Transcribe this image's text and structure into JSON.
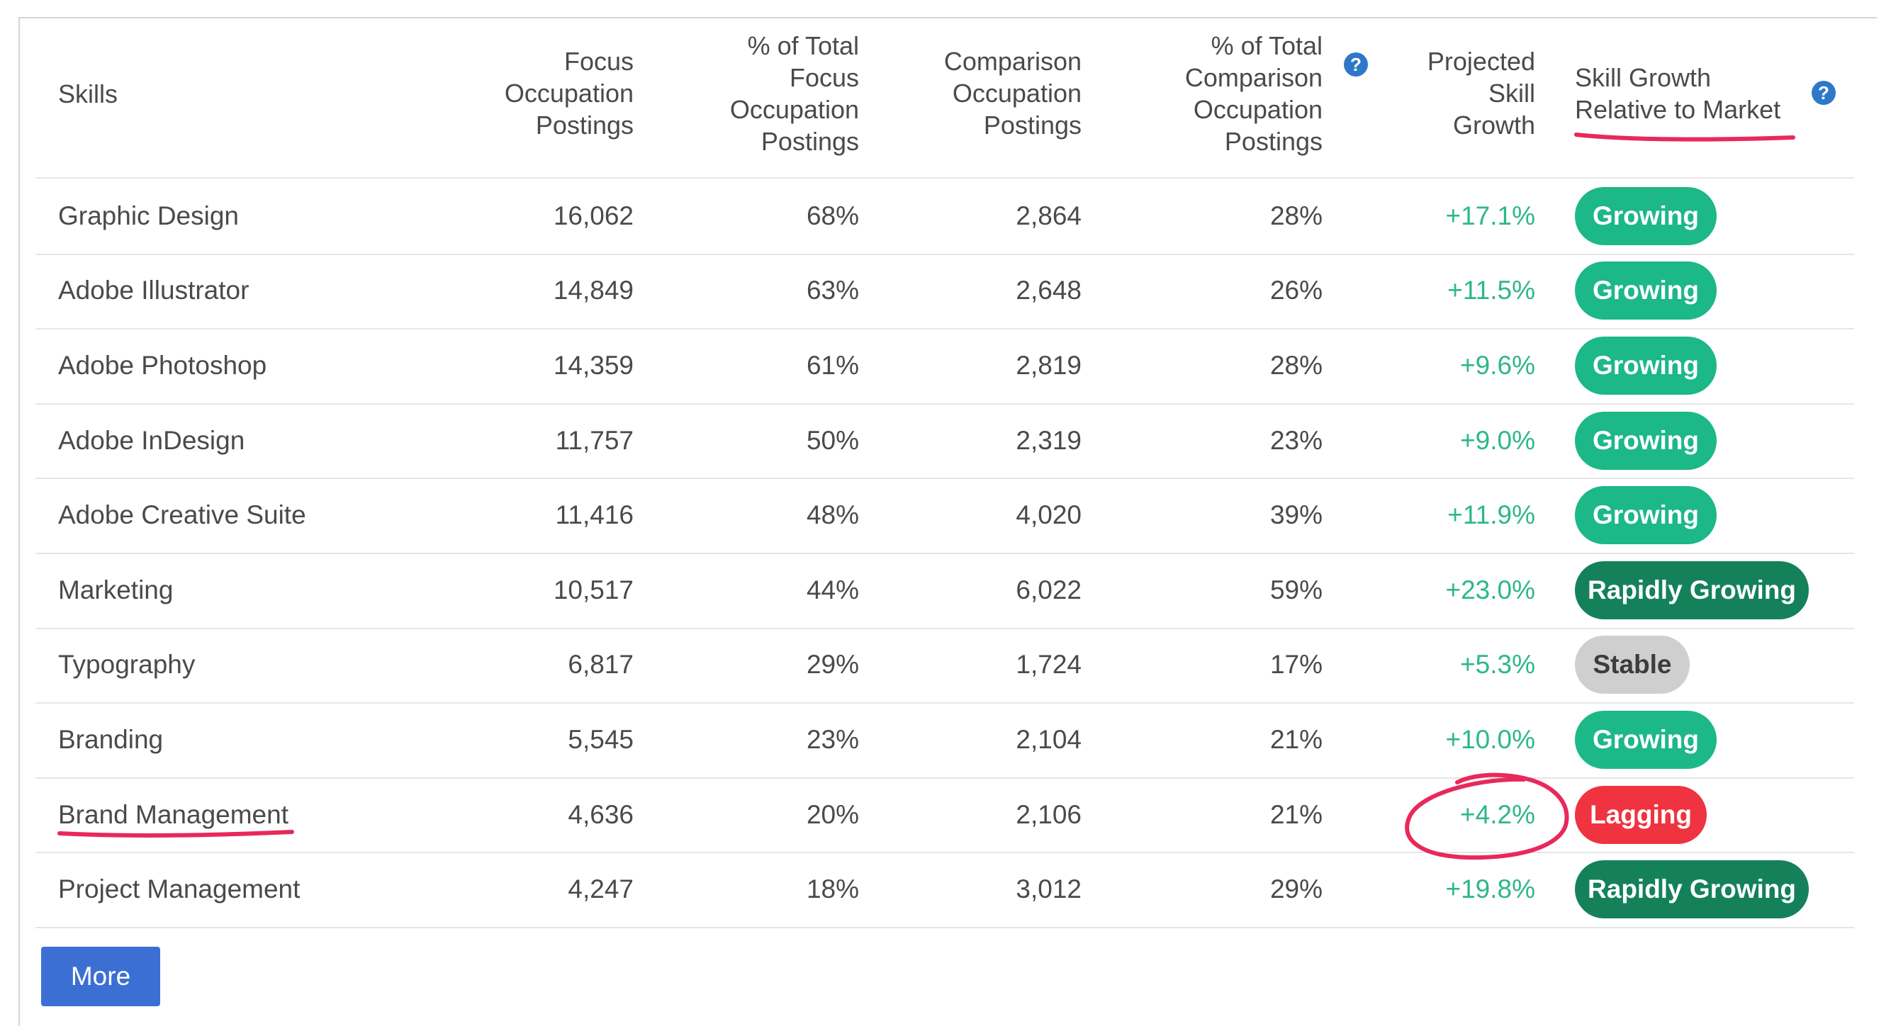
{
  "table": {
    "headers": {
      "skills": "Skills",
      "focus_postings": [
        "Focus",
        "Occupation",
        "Postings"
      ],
      "pct_focus": [
        "% of Total",
        "Focus",
        "Occupation",
        "Postings"
      ],
      "comparison_postings": [
        "Comparison",
        "Occupation",
        "Postings"
      ],
      "pct_comparison": [
        "% of Total",
        "Comparison",
        "Occupation",
        "Postings"
      ],
      "projected_growth": [
        "Projected",
        "Skill",
        "Growth"
      ],
      "relative_growth": [
        "Skill Growth",
        "Relative to Market"
      ]
    },
    "help_icon_glyph": "?",
    "rows": [
      {
        "skill": "Graphic Design",
        "focus": "16,062",
        "pct_focus": "68%",
        "comparison": "2,864",
        "pct_comparison": "28%",
        "growth": "+17.1%",
        "status": "Growing",
        "status_kind": "growing"
      },
      {
        "skill": "Adobe Illustrator",
        "focus": "14,849",
        "pct_focus": "63%",
        "comparison": "2,648",
        "pct_comparison": "26%",
        "growth": "+11.5%",
        "status": "Growing",
        "status_kind": "growing"
      },
      {
        "skill": "Adobe Photoshop",
        "focus": "14,359",
        "pct_focus": "61%",
        "comparison": "2,819",
        "pct_comparison": "28%",
        "growth": "+9.6%",
        "status": "Growing",
        "status_kind": "growing"
      },
      {
        "skill": "Adobe InDesign",
        "focus": "11,757",
        "pct_focus": "50%",
        "comparison": "2,319",
        "pct_comparison": "23%",
        "growth": "+9.0%",
        "status": "Growing",
        "status_kind": "growing"
      },
      {
        "skill": "Adobe Creative Suite",
        "focus": "11,416",
        "pct_focus": "48%",
        "comparison": "4,020",
        "pct_comparison": "39%",
        "growth": "+11.9%",
        "status": "Growing",
        "status_kind": "growing"
      },
      {
        "skill": "Marketing",
        "focus": "10,517",
        "pct_focus": "44%",
        "comparison": "6,022",
        "pct_comparison": "59%",
        "growth": "+23.0%",
        "status": "Rapidly Growing",
        "status_kind": "rapid"
      },
      {
        "skill": "Typography",
        "focus": "6,817",
        "pct_focus": "29%",
        "comparison": "1,724",
        "pct_comparison": "17%",
        "growth": "+5.3%",
        "status": "Stable",
        "status_kind": "stable"
      },
      {
        "skill": "Branding",
        "focus": "5,545",
        "pct_focus": "23%",
        "comparison": "2,104",
        "pct_comparison": "21%",
        "growth": "+10.0%",
        "status": "Growing",
        "status_kind": "growing"
      },
      {
        "skill": "Brand Management",
        "focus": "4,636",
        "pct_focus": "20%",
        "comparison": "2,106",
        "pct_comparison": "21%",
        "growth": "+4.2%",
        "status": "Lagging",
        "status_kind": "lagging"
      },
      {
        "skill": "Project Management",
        "focus": "4,247",
        "pct_focus": "18%",
        "comparison": "3,012",
        "pct_comparison": "29%",
        "growth": "+19.8%",
        "status": "Rapidly Growing",
        "status_kind": "rapid"
      }
    ]
  },
  "more_button": "More",
  "colors": {
    "growth_text": "#2eb886",
    "growing": "#1cb887",
    "rapidly_growing": "#14815b",
    "stable": "#cfcfcf",
    "lagging": "#ef3340",
    "annotation": "#e8295a",
    "button": "#3b6fd4"
  }
}
